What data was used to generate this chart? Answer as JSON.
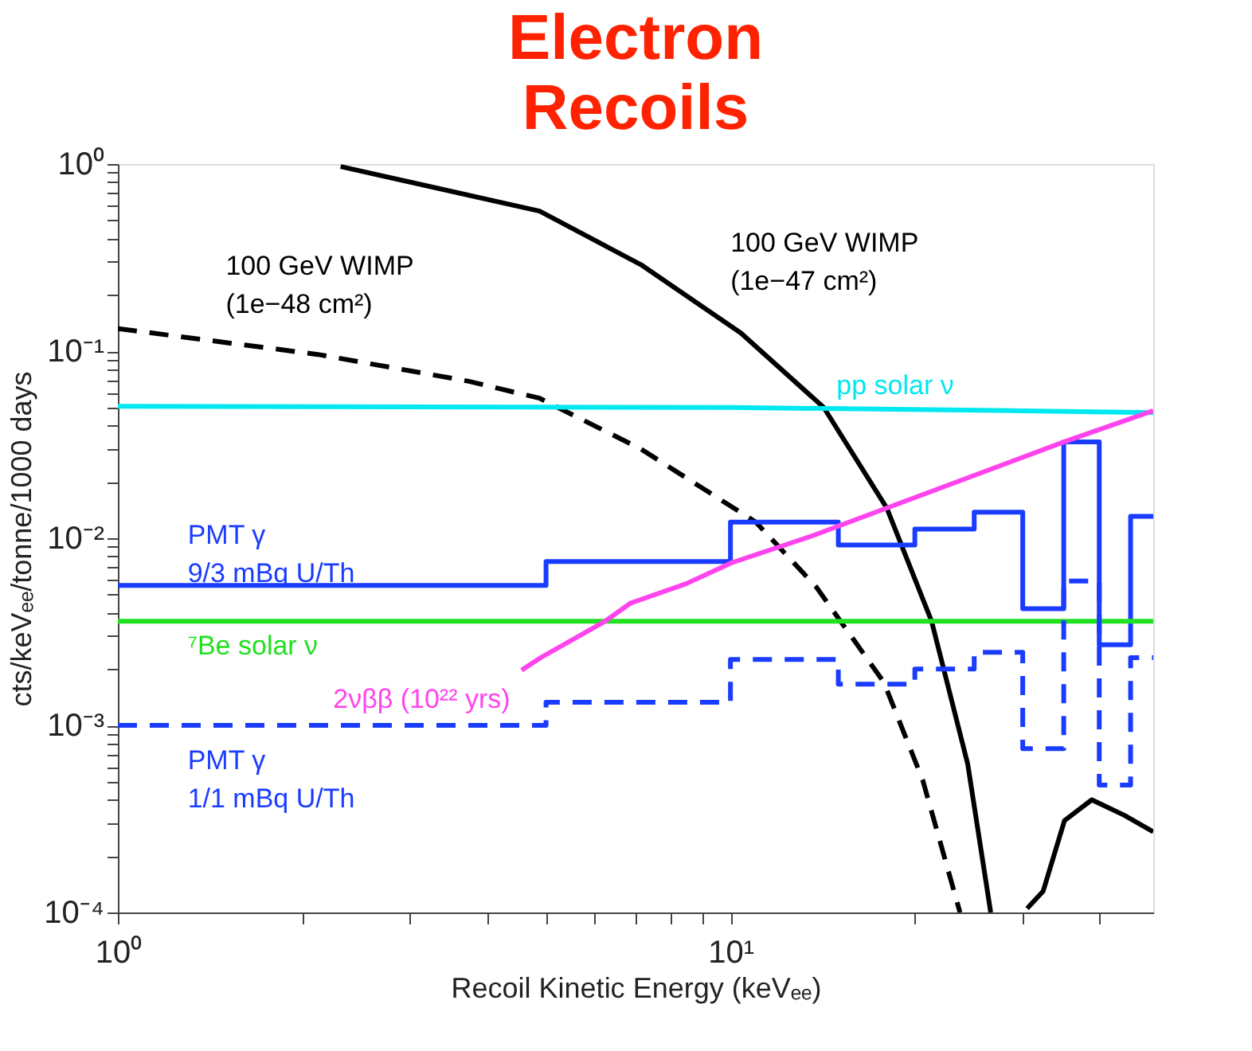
{
  "chart_data": {
    "type": "line",
    "title": [
      "Electron",
      "Recoils"
    ],
    "xlabel": "Recoil Kinetic Energy (keVₑₑ)",
    "ylabel": "cts/keVₑₑ/tonne/1000 days",
    "log": "xy",
    "grid": false,
    "marker": "none",
    "xlim": [
      1,
      49
    ],
    "ylim": [
      0.0001,
      1
    ],
    "xticks": [
      {
        "value": 1,
        "label": "10⁰"
      },
      {
        "value": 2,
        "label": null
      },
      {
        "value": 3,
        "label": null
      },
      {
        "value": 4,
        "label": null
      },
      {
        "value": 5,
        "label": null
      },
      {
        "value": 6,
        "label": null
      },
      {
        "value": 7,
        "label": null
      },
      {
        "value": 8,
        "label": null
      },
      {
        "value": 9,
        "label": null
      },
      {
        "value": 10,
        "label": "10¹"
      },
      {
        "value": 20,
        "label": null
      },
      {
        "value": 30,
        "label": null
      },
      {
        "value": 40,
        "label": null
      }
    ],
    "yticks": [
      {
        "value": 0.0001,
        "label": "10⁻⁴"
      },
      {
        "value": 0.0002,
        "label": null
      },
      {
        "value": 0.0003,
        "label": null
      },
      {
        "value": 0.0004,
        "label": null
      },
      {
        "value": 0.0005,
        "label": null
      },
      {
        "value": 0.0006,
        "label": null
      },
      {
        "value": 0.0007,
        "label": null
      },
      {
        "value": 0.0008,
        "label": null
      },
      {
        "value": 0.0009,
        "label": null
      },
      {
        "value": 0.001,
        "label": "10⁻³"
      },
      {
        "value": 0.002,
        "label": null
      },
      {
        "value": 0.003,
        "label": null
      },
      {
        "value": 0.004,
        "label": null
      },
      {
        "value": 0.005,
        "label": null
      },
      {
        "value": 0.006,
        "label": null
      },
      {
        "value": 0.007,
        "label": null
      },
      {
        "value": 0.008,
        "label": null
      },
      {
        "value": 0.009,
        "label": null
      },
      {
        "value": 0.01,
        "label": "10⁻²"
      },
      {
        "value": 0.02,
        "label": null
      },
      {
        "value": 0.03,
        "label": null
      },
      {
        "value": 0.04,
        "label": null
      },
      {
        "value": 0.05,
        "label": null
      },
      {
        "value": 0.06,
        "label": null
      },
      {
        "value": 0.07,
        "label": null
      },
      {
        "value": 0.08,
        "label": null
      },
      {
        "value": 0.09,
        "label": null
      },
      {
        "value": 0.1,
        "label": "10⁻¹"
      },
      {
        "value": 0.2,
        "label": null
      },
      {
        "value": 0.3,
        "label": null
      },
      {
        "value": 0.4,
        "label": null
      },
      {
        "value": 0.5,
        "label": null
      },
      {
        "value": 0.6,
        "label": null
      },
      {
        "value": 0.7,
        "label": null
      },
      {
        "value": 0.8,
        "label": null
      },
      {
        "value": 0.9,
        "label": null
      },
      {
        "value": 1,
        "label": "10⁰"
      }
    ],
    "series": [
      {
        "name": "100 GeV WIMP\n(1e−48 cm²)",
        "color": "#000000",
        "line_style": "dashed",
        "x": [
          1,
          2.12,
          3.74,
          4.88,
          7.14,
          11.0,
          13.8,
          17.8,
          20.6,
          23.7
        ],
        "values": [
          0.132,
          0.096,
          0.069,
          0.056,
          0.03,
          0.0122,
          0.0055,
          0.0017,
          0.00051,
          0.0001
        ]
      },
      {
        "name": "100 GeV WIMP\n(1e−47 cm²)",
        "color": "#000000",
        "line_style": "solid",
        "x": [
          2.31,
          4.88,
          7.14,
          10.4,
          14.2,
          18.0,
          21.3,
          24.4,
          26.6,
          28.5,
          30.5,
          32.4,
          35.1,
          38.9,
          44,
          49
        ],
        "values": [
          0.97,
          0.56,
          0.29,
          0.125,
          0.05,
          0.0145,
          0.0036,
          0.00062,
          0.0001,
          null,
          0.000105,
          0.00013,
          0.00031,
          0.0004,
          0.00033,
          0.00027
        ]
      },
      {
        "name": "pp solar ν",
        "color": "#00e8f0",
        "line_style": "solid",
        "x": [
          1,
          10,
          30,
          49
        ],
        "values": [
          0.0507,
          0.05,
          0.048,
          0.0469
        ]
      },
      {
        "name": "PMT γ\n9/3 mBq U/Th",
        "color": "#1a3cff",
        "type": "step",
        "line_style": "solid",
        "x": [
          1,
          5,
          10,
          15,
          20,
          25,
          30,
          35,
          40,
          45,
          49
        ],
        "values": [
          0.0056,
          0.0075,
          0.0122,
          0.0092,
          0.0112,
          0.0138,
          0.0042,
          0.0327,
          0.0027,
          0.0131,
          0.0131
        ]
      },
      {
        "name": "⁷Be solar ν",
        "color": "#22e022",
        "line_style": "solid",
        "x": [
          1,
          49
        ],
        "values": [
          0.0036,
          0.0036
        ]
      },
      {
        "name": "2νββ (10²² yrs)",
        "color": "#ff44ee",
        "line_style": "solid",
        "x": [
          4.56,
          4.9,
          6.24,
          6.87,
          8.45,
          10.05,
          13.6,
          35,
          49
        ],
        "values": [
          0.00197,
          0.0023,
          0.0036,
          0.0045,
          0.0057,
          0.0074,
          0.0103,
          0.0327,
          0.048
        ]
      },
      {
        "name": "PMT γ\n1/1 mBq U/Th",
        "color": "#1a3cff",
        "type": "step",
        "line_style": "dashed",
        "x": [
          1,
          5,
          10,
          15,
          20,
          25,
          30,
          35,
          40,
          45,
          49
        ],
        "values": [
          0.001,
          0.00133,
          0.00225,
          0.00166,
          0.002,
          0.00246,
          0.00075,
          0.0059,
          0.00048,
          0.0023,
          0.0023
        ]
      }
    ]
  }
}
